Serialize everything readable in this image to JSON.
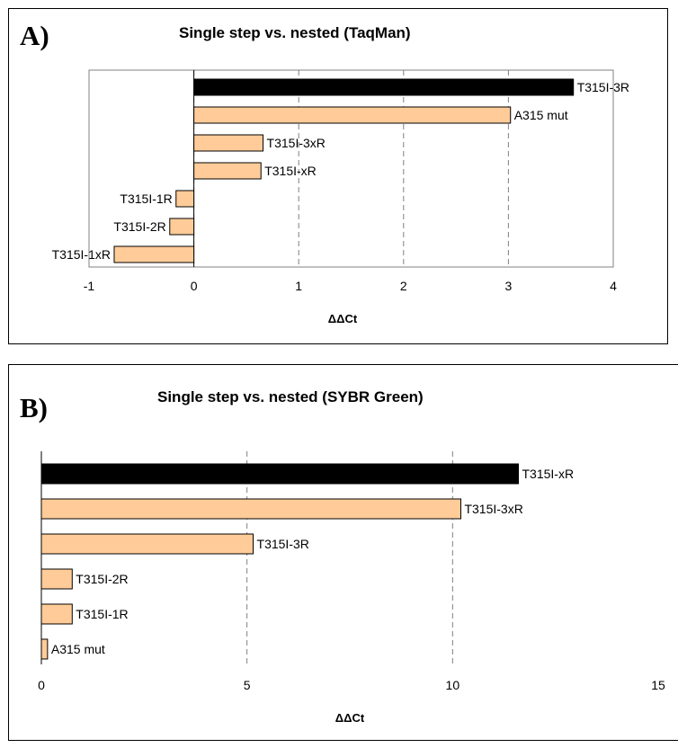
{
  "colors": {
    "highlight": "#000000",
    "bar_fill": "#ffcc99",
    "bar_stroke": "#000000",
    "grid": "#808080",
    "plot_border": "#808080"
  },
  "chart_data": [
    {
      "panel_label": "A)",
      "type": "bar",
      "orientation": "horizontal",
      "title": "Single step vs. nested (TaqMan)",
      "xlabel": "ΔΔCt",
      "ylabel": "",
      "xlim": [
        -1,
        4
      ],
      "xticks": [
        "-1",
        "0",
        "1",
        "2",
        "3",
        "4"
      ],
      "grid": "vertical dashed",
      "categories": [
        "T315I-3R",
        "A315 mut",
        "T315I-3xR",
        "T315I-xR",
        "T315I-1R",
        "T315I-2R",
        "T315I-1xR"
      ],
      "values": [
        3.62,
        3.02,
        0.66,
        0.64,
        -0.17,
        -0.23,
        -0.76
      ],
      "highlight": [
        "T315I-3R"
      ]
    },
    {
      "panel_label": "B)",
      "type": "bar",
      "orientation": "horizontal",
      "title": "Single step vs. nested (SYBR Green)",
      "xlabel": "ΔΔCt",
      "ylabel": "",
      "xlim": [
        0,
        15
      ],
      "xticks": [
        "0",
        "5",
        "10",
        "15"
      ],
      "grid": "vertical dashed",
      "categories": [
        "T315I-xR",
        "T315I-3xR",
        "T315I-3R",
        "T315I-2R",
        "T315I-1R",
        "A315 mut"
      ],
      "values": [
        11.6,
        10.2,
        5.15,
        0.75,
        0.75,
        0.15
      ],
      "highlight": [
        "T315I-xR"
      ]
    }
  ]
}
